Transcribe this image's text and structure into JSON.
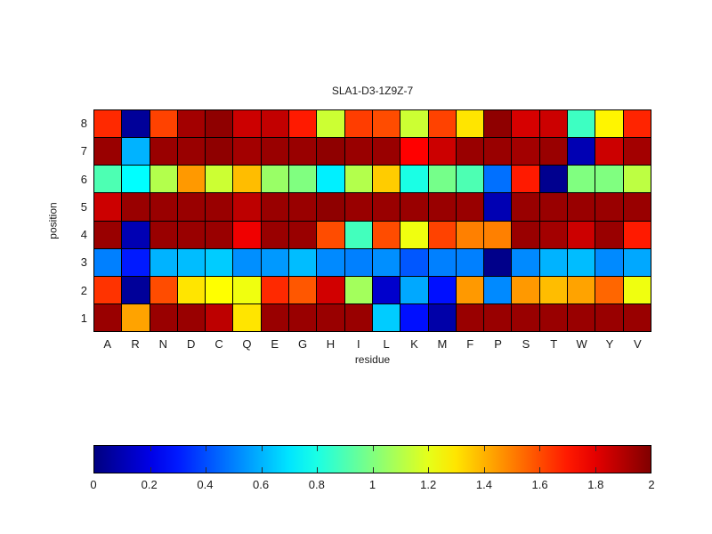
{
  "chart_data": {
    "type": "heatmap",
    "title": "SLA1-D3-1Z9Z-7",
    "xlabel": "residue",
    "ylabel": "position",
    "x_categories": [
      "A",
      "R",
      "N",
      "D",
      "C",
      "Q",
      "E",
      "G",
      "H",
      "I",
      "L",
      "K",
      "M",
      "F",
      "P",
      "S",
      "T",
      "W",
      "Y",
      "V"
    ],
    "y_categories": [
      "8",
      "7",
      "6",
      "5",
      "4",
      "3",
      "2",
      "1"
    ],
    "values": [
      [
        1.67,
        0.05,
        1.62,
        1.93,
        1.97,
        1.85,
        1.87,
        1.7,
        1.15,
        1.63,
        1.6,
        1.15,
        1.62,
        1.3,
        1.97,
        1.83,
        1.85,
        0.87,
        1.27,
        1.68
      ],
      [
        1.95,
        0.6,
        1.95,
        1.95,
        1.97,
        1.93,
        1.95,
        1.95,
        1.97,
        1.95,
        1.95,
        1.75,
        1.85,
        1.95,
        1.95,
        1.93,
        1.95,
        0.1,
        1.85,
        1.93
      ],
      [
        0.9,
        0.75,
        1.1,
        1.45,
        1.15,
        1.38,
        1.05,
        1.0,
        0.72,
        1.1,
        1.35,
        0.8,
        0.98,
        0.9,
        0.47,
        1.7,
        0.03,
        1.0,
        1.0,
        1.12
      ],
      [
        1.85,
        1.95,
        1.95,
        1.95,
        1.95,
        1.88,
        1.95,
        1.95,
        1.97,
        1.95,
        1.95,
        1.95,
        1.95,
        1.95,
        0.1,
        1.95,
        1.95,
        1.95,
        1.95,
        1.95
      ],
      [
        1.95,
        0.1,
        1.95,
        1.95,
        1.95,
        1.78,
        1.95,
        1.95,
        1.6,
        0.88,
        1.6,
        1.22,
        1.62,
        1.5,
        1.5,
        1.95,
        1.93,
        1.85,
        1.95,
        1.7
      ],
      [
        0.5,
        0.3,
        0.6,
        0.62,
        0.65,
        0.53,
        0.55,
        0.62,
        0.52,
        0.5,
        0.53,
        0.42,
        0.5,
        0.5,
        0.02,
        0.52,
        0.6,
        0.62,
        0.52,
        0.58
      ],
      [
        1.65,
        0.05,
        1.6,
        1.3,
        1.25,
        1.22,
        1.67,
        1.58,
        1.84,
        1.07,
        0.15,
        0.58,
        0.28,
        1.45,
        0.52,
        1.45,
        1.38,
        1.43,
        1.55,
        1.22
      ],
      [
        1.95,
        1.43,
        1.95,
        1.95,
        1.88,
        1.3,
        1.95,
        1.95,
        1.95,
        1.95,
        0.65,
        0.28,
        0.08,
        1.95,
        1.95,
        1.95,
        1.95,
        1.95,
        1.95,
        1.95
      ]
    ],
    "vmin": 0,
    "vmax": 2,
    "colormap": "jet",
    "grid": true,
    "colorbar": {
      "position": "bottom",
      "ticks": [
        "0",
        "0.2",
        "0.4",
        "0.6",
        "0.8",
        "1",
        "1.2",
        "1.4",
        "1.6",
        "1.8",
        "2"
      ]
    }
  }
}
